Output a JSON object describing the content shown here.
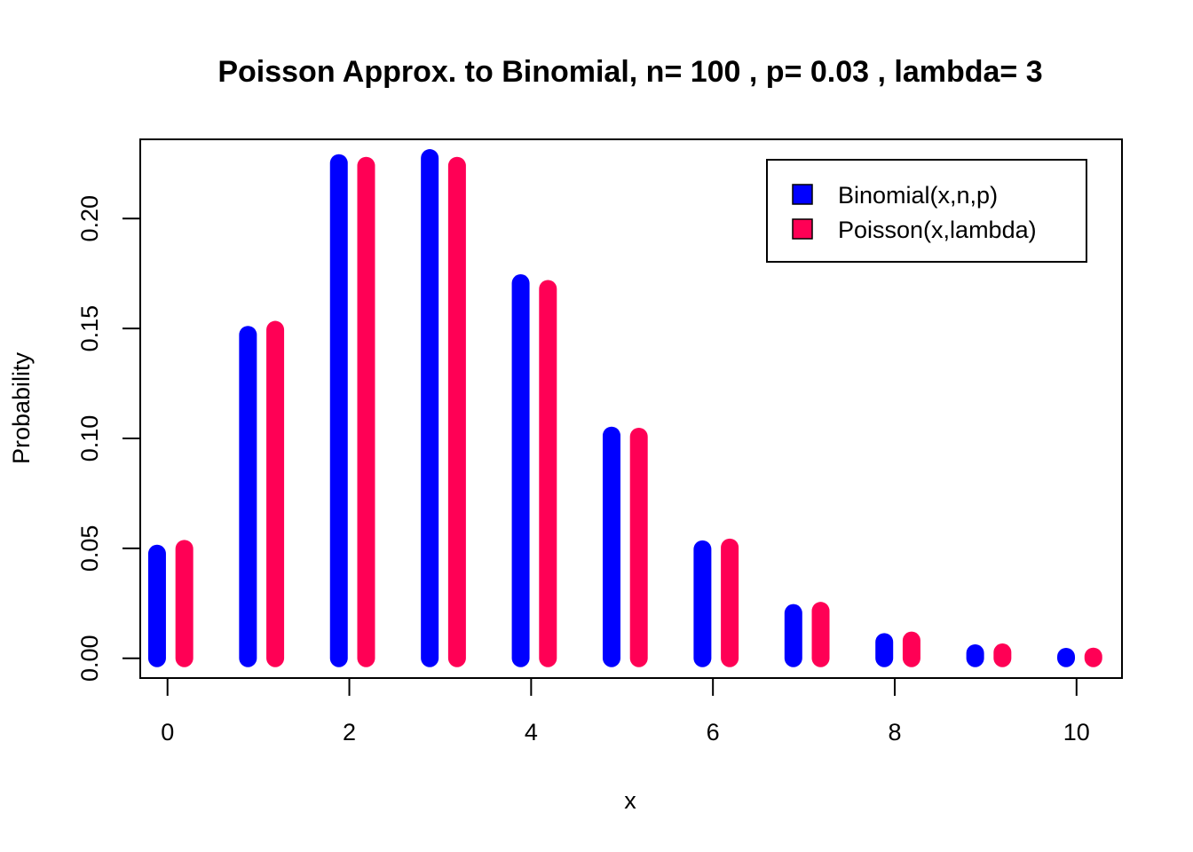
{
  "chart_data": {
    "type": "bar",
    "title": "Poisson Approx. to Binomial, n= 100 , p= 0.03 , lambda= 3",
    "xlabel": "x",
    "ylabel": "Probability",
    "x": [
      0,
      1,
      2,
      3,
      4,
      5,
      6,
      7,
      8,
      9,
      10
    ],
    "x_ticks": [
      "0",
      "2",
      "4",
      "6",
      "8",
      "10"
    ],
    "y_ticks": [
      "0.00",
      "0.05",
      "0.10",
      "0.15",
      "0.20"
    ],
    "xlim": [
      -0.3,
      10.5
    ],
    "ylim": [
      -0.009,
      0.236
    ],
    "grid": false,
    "legend_position": "top-right",
    "series": [
      {
        "name": "Binomial(x,n,p)",
        "color": "#0000FF",
        "values": [
          0.0476,
          0.1471,
          0.2252,
          0.2275,
          0.1706,
          0.1013,
          0.0496,
          0.0206,
          0.0074,
          0.0023,
          0.0007
        ]
      },
      {
        "name": "Poisson(x,lambda)",
        "color": "#FF0055",
        "values": [
          0.0498,
          0.1494,
          0.224,
          0.224,
          0.168,
          0.1008,
          0.0504,
          0.0216,
          0.0081,
          0.0027,
          0.0008
        ]
      }
    ]
  }
}
